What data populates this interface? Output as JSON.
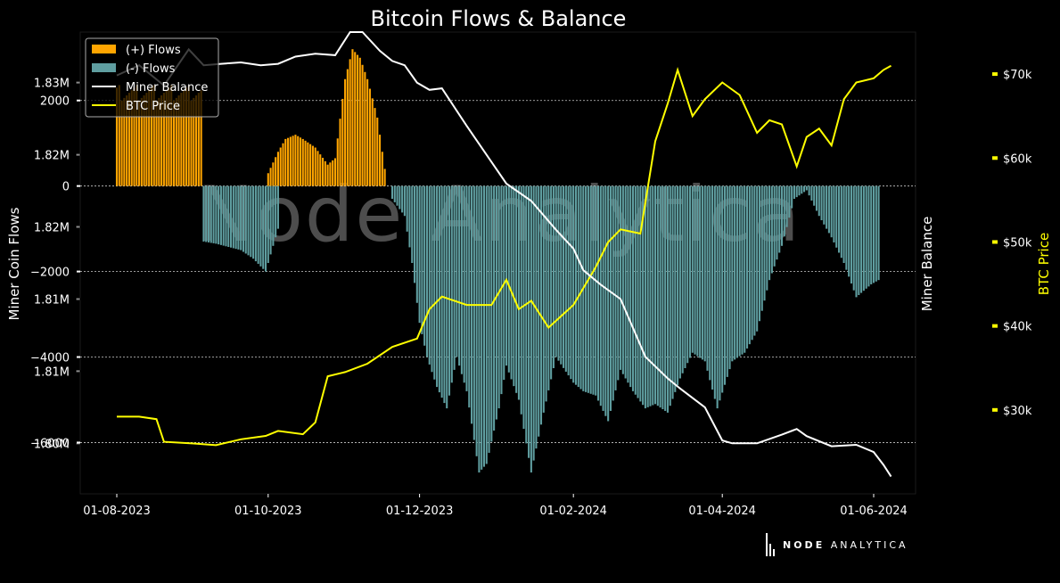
{
  "chart_data": {
    "type": "bar",
    "title": "Bitcoin Flows & Balance",
    "watermark": "Node Analytica",
    "xlabel": "",
    "y_left_label": "Miner Coin Flows",
    "y_right_label": "Miner Balance",
    "y_right2_label": "BTC Price",
    "x_ticks": [
      "01-08-2023",
      "01-10-2023",
      "01-12-2023",
      "01-02-2024",
      "01-04-2024",
      "01-06-2024"
    ],
    "flow_ticks": [
      "2000",
      "0",
      "−2000",
      "−4000",
      "−6000"
    ],
    "flow_tick_values": [
      2000,
      0,
      -2000,
      -4000,
      -6000
    ],
    "balance_ticks": [
      "1.83M",
      "1.82M",
      "1.82M",
      "1.81M",
      "1.81M",
      "1.80M"
    ],
    "balance_tick_values": [
      1.83,
      1.825,
      1.82,
      1.815,
      1.81,
      1.805
    ],
    "price_ticks": [
      "$70k",
      "$60k",
      "$50k",
      "$40k",
      "$30k"
    ],
    "price_tick_values": [
      70000,
      60000,
      50000,
      40000,
      30000
    ],
    "flow_ylim": [
      -7200,
      3600
    ],
    "balance_ylim": [
      1.8015,
      1.8335
    ],
    "price_ylim": [
      20000,
      75000
    ],
    "legend": [
      "(+) Flows",
      "(-) Flows",
      "Miner Balance",
      "BTC Price"
    ],
    "legend_position": "top-left",
    "grid": "horizontal dashed",
    "series": [
      {
        "name": "(+) Flows",
        "color": "#FFA500",
        "x": [
          "2023-08-01",
          "2023-09-05",
          "2023-09-10",
          "2023-09-20",
          "2023-10-01",
          "2023-10-05",
          "2023-10-08",
          "2023-10-12",
          "2023-10-15",
          "2023-10-20",
          "2023-10-25",
          "2023-10-28",
          "2023-11-01",
          "2023-11-04",
          "2023-11-07",
          "2023-11-10",
          "2023-11-14",
          "2023-11-18",
          "2023-11-20"
        ],
        "values": [
          2000,
          2000,
          1900,
          0,
          300,
          800,
          1100,
          1200,
          1100,
          900,
          500,
          650,
          2500,
          3200,
          3000,
          2500,
          1600,
          0,
          0
        ]
      },
      {
        "name": "(-) Flows",
        "color": "#5F9EA0",
        "x": [
          "2023-09-05",
          "2023-09-10",
          "2023-09-20",
          "2023-09-25",
          "2023-09-30",
          "2023-10-05",
          "2023-11-20",
          "2023-11-25",
          "2023-11-28",
          "2023-12-01",
          "2023-12-04",
          "2023-12-08",
          "2023-12-12",
          "2023-12-16",
          "2023-12-20",
          "2023-12-25",
          "2023-12-28",
          "2024-01-02",
          "2024-01-05",
          "2024-01-10",
          "2024-01-15",
          "2024-01-20",
          "2024-01-25",
          "2024-02-01",
          "2024-02-05",
          "2024-02-10",
          "2024-02-15",
          "2024-02-20",
          "2024-02-25",
          "2024-03-01",
          "2024-03-05",
          "2024-03-10",
          "2024-03-15",
          "2024-03-20",
          "2024-03-25",
          "2024-03-30",
          "2024-04-05",
          "2024-04-10",
          "2024-04-15",
          "2024-04-20",
          "2024-04-25",
          "2024-04-30",
          "2024-05-05",
          "2024-05-10",
          "2024-05-15",
          "2024-05-20",
          "2024-05-25",
          "2024-05-31",
          "2024-06-03"
        ],
        "values": [
          -1300,
          -1350,
          -1500,
          -1700,
          -2000,
          -1000,
          -300,
          -700,
          -1800,
          -3200,
          -4000,
          -4700,
          -5200,
          -4000,
          -4800,
          -6700,
          -6500,
          -5200,
          -4200,
          -5000,
          -6700,
          -5300,
          -4000,
          -4600,
          -4800,
          -4900,
          -5500,
          -4300,
          -4800,
          -5200,
          -5100,
          -5300,
          -4500,
          -3900,
          -4100,
          -5200,
          -4100,
          -3900,
          -3400,
          -2200,
          -1400,
          -300,
          -100,
          -700,
          -1200,
          -1800,
          -2600,
          -2300,
          -2200
        ]
      },
      {
        "name": "Miner Balance",
        "color": "#ffffff",
        "x": [
          "2023-08-01",
          "2023-08-10",
          "2023-08-20",
          "2023-08-30",
          "2023-09-05",
          "2023-09-12",
          "2023-09-20",
          "2023-09-28",
          "2023-10-05",
          "2023-10-12",
          "2023-10-20",
          "2023-10-28",
          "2023-11-03",
          "2023-11-08",
          "2023-11-15",
          "2023-11-20",
          "2023-11-25",
          "2023-11-30",
          "2023-12-05",
          "2023-12-10",
          "2023-12-20",
          "2023-12-30",
          "2024-01-05",
          "2024-01-15",
          "2024-01-25",
          "2024-02-01",
          "2024-02-05",
          "2024-02-12",
          "2024-02-20",
          "2024-03-01",
          "2024-03-10",
          "2024-03-15",
          "2024-03-25",
          "2024-04-01",
          "2024-04-05",
          "2024-04-15",
          "2024-04-25",
          "2024-05-01",
          "2024-05-05",
          "2024-05-15",
          "2024-05-25",
          "2024-06-01",
          "2024-06-05",
          "2024-06-08"
        ],
        "values": [
          1.8305,
          1.8312,
          1.8298,
          1.8323,
          1.8312,
          1.8313,
          1.8314,
          1.8312,
          1.8313,
          1.8318,
          1.832,
          1.8319,
          1.8335,
          1.8335,
          1.8322,
          1.8315,
          1.8312,
          1.83,
          1.8295,
          1.8296,
          1.827,
          1.8245,
          1.823,
          1.8218,
          1.8198,
          1.8185,
          1.817,
          1.816,
          1.815,
          1.811,
          1.8095,
          1.8088,
          1.8075,
          1.8052,
          1.805,
          1.805,
          1.8056,
          1.806,
          1.8055,
          1.8048,
          1.8049,
          1.8044,
          1.8035,
          1.8027
        ]
      },
      {
        "name": "BTC Price",
        "color": "#FFFF00",
        "x": [
          "2023-08-01",
          "2023-08-10",
          "2023-08-17",
          "2023-08-20",
          "2023-09-01",
          "2023-09-10",
          "2023-09-20",
          "2023-09-30",
          "2023-10-05",
          "2023-10-15",
          "2023-10-20",
          "2023-10-25",
          "2023-11-01",
          "2023-11-10",
          "2023-11-20",
          "2023-11-30",
          "2023-12-05",
          "2023-12-10",
          "2023-12-20",
          "2023-12-30",
          "2024-01-05",
          "2024-01-10",
          "2024-01-15",
          "2024-01-22",
          "2024-02-01",
          "2024-02-10",
          "2024-02-15",
          "2024-02-20",
          "2024-02-28",
          "2024-03-05",
          "2024-03-10",
          "2024-03-14",
          "2024-03-20",
          "2024-03-25",
          "2024-04-01",
          "2024-04-08",
          "2024-04-15",
          "2024-04-20",
          "2024-04-25",
          "2024-05-01",
          "2024-05-05",
          "2024-05-10",
          "2024-05-15",
          "2024-05-20",
          "2024-05-25",
          "2024-06-01",
          "2024-06-05",
          "2024-06-08"
        ],
        "values": [
          29200,
          29200,
          28900,
          26200,
          26000,
          25800,
          26500,
          26900,
          27500,
          27100,
          28500,
          34000,
          34500,
          35500,
          37500,
          38500,
          42000,
          43500,
          42500,
          42500,
          45500,
          42000,
          43000,
          39800,
          42500,
          47000,
          50000,
          51500,
          51000,
          62000,
          66500,
          70500,
          65000,
          67000,
          69000,
          67500,
          63000,
          64500,
          64000,
          59000,
          62500,
          63500,
          61500,
          67000,
          69000,
          69500,
          70500,
          71000
        ]
      }
    ]
  },
  "brand": {
    "bold": "NODE",
    "rest": "ANALYTICA"
  }
}
